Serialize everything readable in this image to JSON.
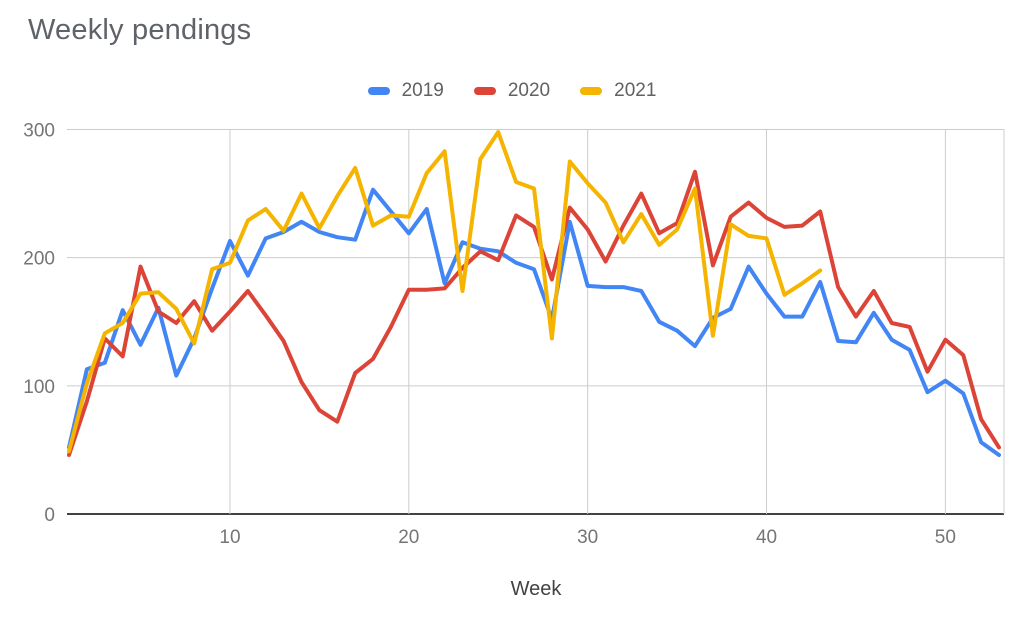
{
  "chart_data": {
    "type": "line",
    "title": "Weekly pendings",
    "xlabel": "Week",
    "ylabel": "",
    "x_range": [
      1,
      53
    ],
    "ylim": [
      0,
      300
    ],
    "xticks": [
      10,
      20,
      30,
      40,
      50
    ],
    "yticks": [
      0,
      100,
      200,
      300
    ],
    "grid": true,
    "legend_position": "top-center",
    "x": [
      1,
      2,
      3,
      4,
      5,
      6,
      7,
      8,
      9,
      10,
      11,
      12,
      13,
      14,
      15,
      16,
      17,
      18,
      19,
      20,
      21,
      22,
      23,
      24,
      25,
      26,
      27,
      28,
      29,
      30,
      31,
      32,
      33,
      34,
      35,
      36,
      37,
      38,
      39,
      40,
      41,
      42,
      43,
      44,
      45,
      46,
      47,
      48,
      49,
      50,
      51,
      52,
      53
    ],
    "series": [
      {
        "name": "2019",
        "color": "#4285f4",
        "values": [
          52,
          113,
          118,
          159,
          132,
          161,
          108,
          137,
          176,
          213,
          186,
          215,
          220,
          228,
          220,
          216,
          214,
          253,
          236,
          219,
          238,
          180,
          212,
          207,
          205,
          196,
          191,
          152,
          228,
          178,
          177,
          177,
          174,
          150,
          143,
          131,
          153,
          160,
          193,
          172,
          154,
          154,
          181,
          135,
          134,
          157,
          136,
          128,
          95,
          104,
          94,
          56,
          46
        ]
      },
      {
        "name": "2020",
        "color": "#db4437",
        "values": [
          46,
          88,
          137,
          123,
          193,
          158,
          149,
          166,
          143,
          158,
          174,
          155,
          135,
          103,
          81,
          72,
          110,
          121,
          146,
          175,
          175,
          176,
          192,
          205,
          198,
          233,
          224,
          183,
          239,
          222,
          197,
          225,
          250,
          219,
          227,
          267,
          194,
          232,
          243,
          231,
          224,
          225,
          236,
          177,
          154,
          174,
          149,
          146,
          111,
          136,
          124,
          74,
          52
        ]
      },
      {
        "name": "2021",
        "color": "#f4b400",
        "values": [
          49,
          102,
          141,
          149,
          172,
          173,
          160,
          133,
          191,
          196,
          229,
          238,
          221,
          250,
          223,
          248,
          270,
          225,
          233,
          232,
          266,
          283,
          174,
          277,
          298,
          259,
          254,
          137,
          275,
          258,
          243,
          212,
          234,
          210,
          222,
          254,
          139,
          226,
          217,
          215,
          171,
          180,
          190
        ]
      }
    ]
  }
}
